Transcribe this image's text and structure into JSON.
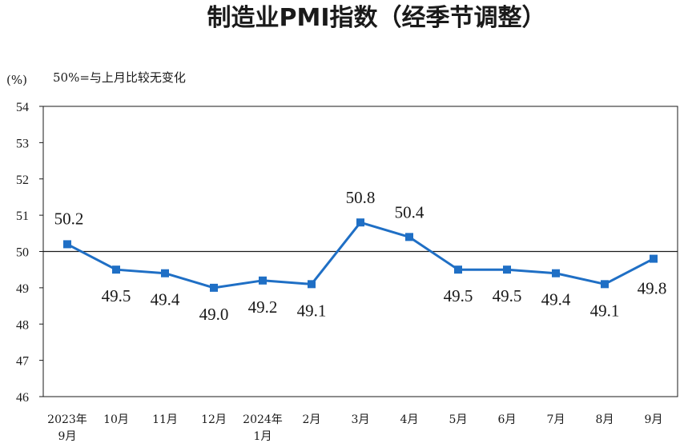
{
  "chart_data": {
    "type": "line",
    "title": "制造业PMI指数（经季节调整）",
    "unit_label": "(%)",
    "note": "50%=与上月比较无变化",
    "ylim": [
      46,
      54
    ],
    "yticks": [
      46,
      47,
      48,
      49,
      50,
      51,
      52,
      53,
      54
    ],
    "reference_line": 50,
    "categories": [
      [
        "2023年",
        "9月"
      ],
      [
        "10月"
      ],
      [
        "11月"
      ],
      [
        "12月"
      ],
      [
        "2024年",
        "1月"
      ],
      [
        "2月"
      ],
      [
        "3月"
      ],
      [
        "4月"
      ],
      [
        "5月"
      ],
      [
        "6月"
      ],
      [
        "7月"
      ],
      [
        "8月"
      ],
      [
        "9月"
      ]
    ],
    "values": [
      50.2,
      49.5,
      49.4,
      49.0,
      49.2,
      49.1,
      50.8,
      50.4,
      49.5,
      49.5,
      49.4,
      49.1,
      49.8
    ],
    "data_labels": [
      "50.2",
      "49.5",
      "49.4",
      "49.0",
      "49.2",
      "49.1",
      "50.8",
      "50.4",
      "49.5",
      "49.5",
      "49.4",
      "49.1",
      "49.8"
    ],
    "grid": false,
    "line_color": "#1f6fc5",
    "marker": "square"
  }
}
